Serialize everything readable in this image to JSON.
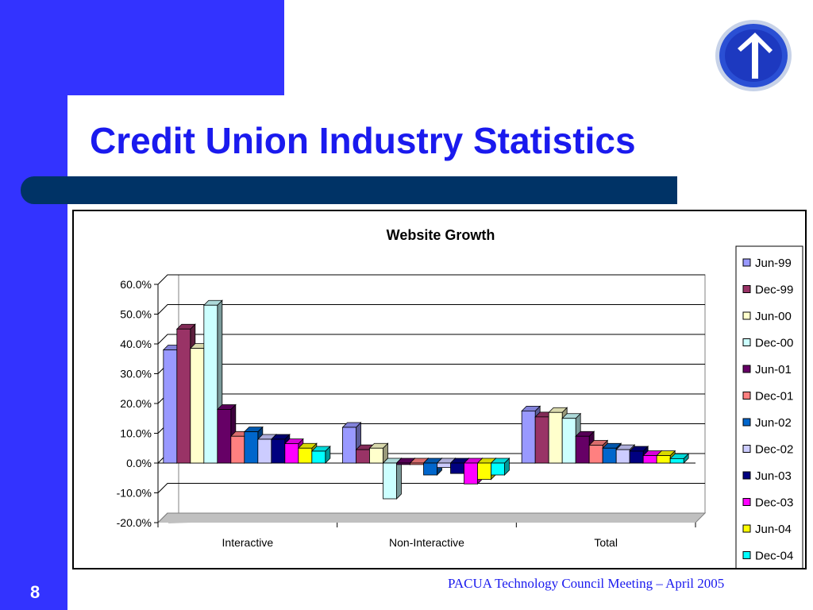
{
  "slide": {
    "title": "Credit Union Industry Statistics",
    "number": "8",
    "footer": "PACUA Technology Council Meeting – April 2005",
    "logo_icon": "arrow-up-logo-icon",
    "colors": {
      "accent": "#3333ff",
      "title": "#1a1aee",
      "bar": "#003366"
    }
  },
  "chart_data": {
    "type": "bar",
    "title": "Website Growth",
    "categories": [
      "Interactive",
      "Non-Interactive",
      "Total"
    ],
    "y_ticks": [
      "60.0%",
      "50.0%",
      "40.0%",
      "30.0%",
      "20.0%",
      "10.0%",
      "0.0%",
      "-10.0%",
      "-20.0%"
    ],
    "ylim": [
      -20,
      60
    ],
    "grid": true,
    "legend": "right",
    "series": [
      {
        "name": "Jun-99",
        "color": "#9999ff",
        "values": [
          38,
          12,
          17.5
        ]
      },
      {
        "name": "Dec-99",
        "color": "#993366",
        "values": [
          45,
          4.5,
          15.5
        ]
      },
      {
        "name": "Jun-00",
        "color": "#ffffcc",
        "values": [
          38.5,
          5,
          17
        ]
      },
      {
        "name": "Dec-00",
        "color": "#ccffff",
        "values": [
          53,
          -12,
          15
        ]
      },
      {
        "name": "Jun-01",
        "color": "#660066",
        "values": [
          18,
          -0.5,
          9
        ]
      },
      {
        "name": "Dec-01",
        "color": "#ff8080",
        "values": [
          9,
          -0.5,
          6
        ]
      },
      {
        "name": "Jun-02",
        "color": "#0066cc",
        "values": [
          10.5,
          -4,
          5
        ]
      },
      {
        "name": "Dec-02",
        "color": "#ccccff",
        "values": [
          8,
          -1.5,
          4.5
        ]
      },
      {
        "name": "Jun-03",
        "color": "#000080",
        "values": [
          8,
          -3.5,
          4
        ]
      },
      {
        "name": "Dec-03",
        "color": "#ff00ff",
        "values": [
          6.5,
          -7,
          2.5
        ]
      },
      {
        "name": "Jun-04",
        "color": "#ffff00",
        "values": [
          5,
          -5.5,
          2.5
        ]
      },
      {
        "name": "Dec-04",
        "color": "#00ffff",
        "values": [
          4,
          -4,
          1.5
        ]
      }
    ]
  }
}
